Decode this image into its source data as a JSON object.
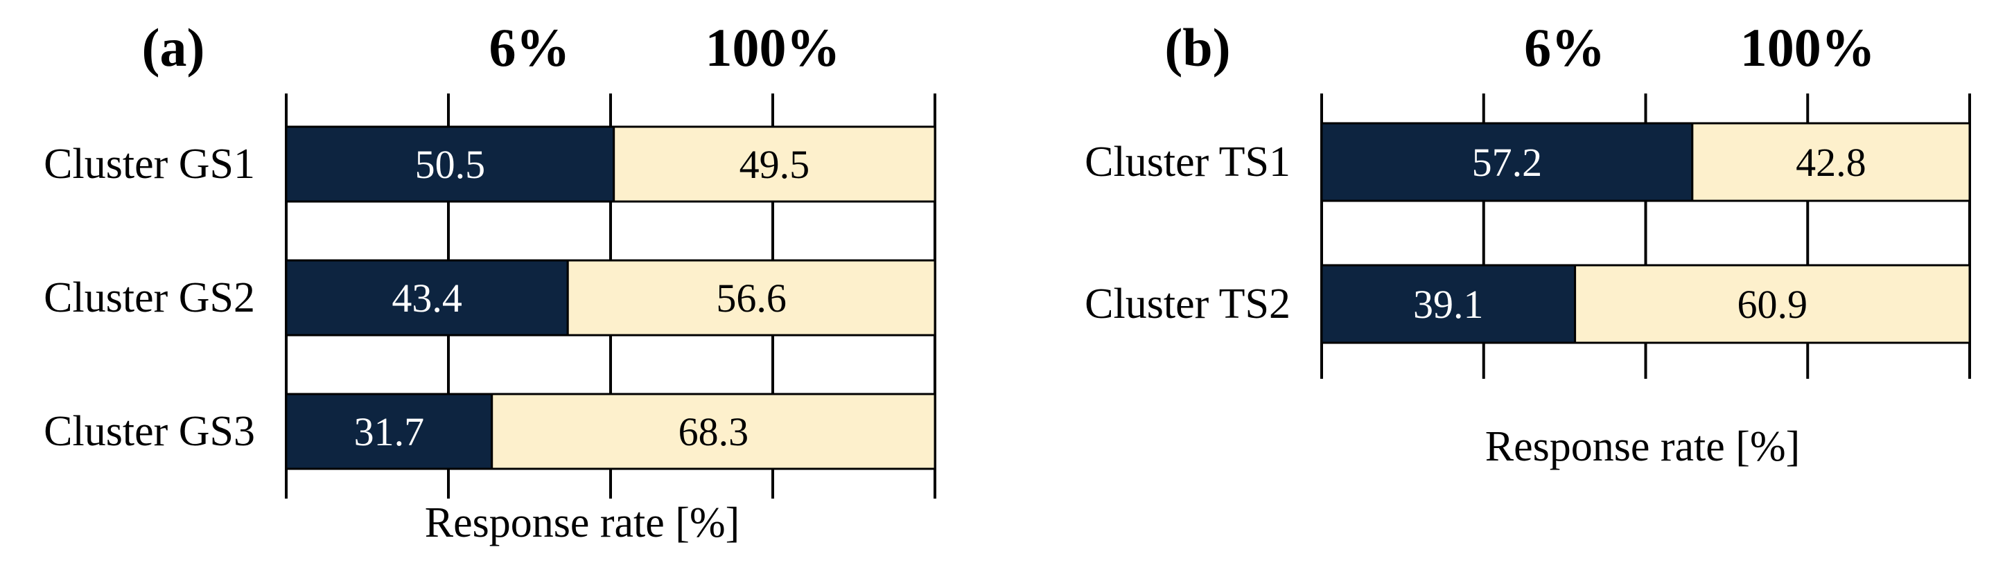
{
  "chart_data": [
    {
      "type": "bar",
      "stacked": true,
      "orientation": "horizontal",
      "panel_label": "(a)",
      "header_labels": [
        "6%",
        "100%"
      ],
      "categories": [
        "Cluster GS1",
        "Cluster GS2",
        "Cluster GS3"
      ],
      "series": [
        {
          "color": "#0d2440",
          "values": [
            50.5,
            43.4,
            31.7
          ]
        },
        {
          "color": "#fdf0cc",
          "values": [
            49.5,
            56.6,
            68.3
          ]
        }
      ],
      "xlabel": "Response rate [%]",
      "xlim": [
        0,
        100
      ],
      "grid": true
    },
    {
      "type": "bar",
      "stacked": true,
      "orientation": "horizontal",
      "panel_label": "(b)",
      "header_labels": [
        "6%",
        "100%"
      ],
      "categories": [
        "Cluster TS1",
        "Cluster TS2"
      ],
      "series": [
        {
          "color": "#0d2440",
          "values": [
            57.2,
            39.1
          ]
        },
        {
          "color": "#fdf0cc",
          "values": [
            42.8,
            60.9
          ]
        }
      ],
      "xlabel": "Response rate [%]",
      "xlim": [
        0,
        100
      ],
      "grid": true
    }
  ]
}
